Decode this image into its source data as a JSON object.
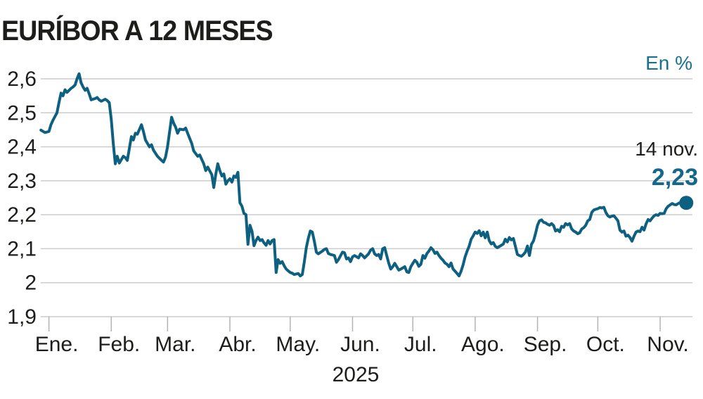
{
  "header": {
    "title": "EURÍBOR A 12 MESES",
    "unit_label": "En %"
  },
  "annotation": {
    "date": "14 nov.",
    "value": "2,23"
  },
  "colors": {
    "line": "#0e6080",
    "dot": "#0e6080",
    "value_text": "#15688c",
    "unit_text": "#17718f",
    "grid": "#cccccc",
    "tick": "#b3b3b3",
    "text": "#1d1d1b",
    "background": "#ffffff"
  },
  "chart_data": {
    "type": "line",
    "title": "EURÍBOR A 12 MESES",
    "unit": "En %",
    "xlabel": "2025",
    "ylabel": "",
    "ylim": [
      1.9,
      2.6
    ],
    "grid": "horizontal",
    "y_tick_labels": [
      "2,6",
      "2,5",
      "2,4",
      "2,3",
      "2,2",
      "2,1",
      "2",
      "1,9"
    ],
    "y_tick_values": [
      2.6,
      2.5,
      2.4,
      2.3,
      2.2,
      2.1,
      2.0,
      1.9
    ],
    "x_tick_labels": [
      "Ene.",
      "Feb.",
      "Mar.",
      "Abr.",
      "May.",
      "Jun.",
      "Jul.",
      "Ago.",
      "Sep.",
      "Oct.",
      "Nov."
    ],
    "month_start_days": [
      1,
      32,
      60,
      91,
      121,
      152,
      182,
      213,
      244,
      274,
      305
    ],
    "last_point": {
      "date": "14 nov.",
      "value": 2.23
    },
    "series": [
      {
        "name": "Euríbor 12 meses",
        "x_unit": "day_of_year_2025",
        "points": [
          [
            -3,
            2.449
          ],
          [
            -1,
            2.442
          ],
          [
            1,
            2.445
          ],
          [
            2,
            2.465
          ],
          [
            3,
            2.478
          ],
          [
            5,
            2.5
          ],
          [
            6,
            2.53
          ],
          [
            7,
            2.558
          ],
          [
            8,
            2.55
          ],
          [
            9,
            2.568
          ],
          [
            10,
            2.56
          ],
          [
            12,
            2.572
          ],
          [
            13,
            2.576
          ],
          [
            14,
            2.582
          ],
          [
            15,
            2.6
          ],
          [
            16,
            2.615
          ],
          [
            17,
            2.588
          ],
          [
            18,
            2.576
          ],
          [
            19,
            2.566
          ],
          [
            20,
            2.572
          ],
          [
            21,
            2.556
          ],
          [
            22,
            2.538
          ],
          [
            24,
            2.542
          ],
          [
            25,
            2.545
          ],
          [
            26,
            2.538
          ],
          [
            27,
            2.534
          ],
          [
            29,
            2.54
          ],
          [
            30,
            2.536
          ],
          [
            31,
            2.53
          ],
          [
            32,
            2.48
          ],
          [
            33,
            2.41
          ],
          [
            34,
            2.35
          ],
          [
            35,
            2.372
          ],
          [
            36,
            2.352
          ],
          [
            38,
            2.372
          ],
          [
            39,
            2.368
          ],
          [
            40,
            2.36
          ],
          [
            42,
            2.43
          ],
          [
            43,
            2.42
          ],
          [
            44,
            2.44
          ],
          [
            45,
            2.437
          ],
          [
            47,
            2.465
          ],
          [
            48,
            2.445
          ],
          [
            49,
            2.42
          ],
          [
            51,
            2.4
          ],
          [
            52,
            2.406
          ],
          [
            53,
            2.39
          ],
          [
            55,
            2.372
          ],
          [
            57,
            2.36
          ],
          [
            58,
            2.355
          ],
          [
            59,
            2.37
          ],
          [
            60,
            2.4
          ],
          [
            62,
            2.487
          ],
          [
            63,
            2.47
          ],
          [
            64,
            2.458
          ],
          [
            65,
            2.44
          ],
          [
            66,
            2.452
          ],
          [
            68,
            2.45
          ],
          [
            69,
            2.455
          ],
          [
            70,
            2.44
          ],
          [
            72,
            2.41
          ],
          [
            73,
            2.388
          ],
          [
            75,
            2.372
          ],
          [
            76,
            2.376
          ],
          [
            78,
            2.35
          ],
          [
            79,
            2.33
          ],
          [
            80,
            2.34
          ],
          [
            82,
            2.318
          ],
          [
            83,
            2.28
          ],
          [
            84,
            2.32
          ],
          [
            85,
            2.35
          ],
          [
            86,
            2.33
          ],
          [
            87,
            2.314
          ],
          [
            88,
            2.32
          ],
          [
            89,
            2.29
          ],
          [
            90,
            2.3
          ],
          [
            91,
            2.306
          ],
          [
            92,
            2.296
          ],
          [
            93,
            2.314
          ],
          [
            94,
            2.31
          ],
          [
            95,
            2.325
          ],
          [
            96,
            2.235
          ],
          [
            97,
            2.225
          ],
          [
            98,
            2.204
          ],
          [
            99,
            2.2
          ],
          [
            100,
            2.113
          ],
          [
            101,
            2.169
          ],
          [
            102,
            2.151
          ],
          [
            103,
            2.109
          ],
          [
            104,
            2.124
          ],
          [
            105,
            2.134
          ],
          [
            106,
            2.124
          ],
          [
            107,
            2.127
          ],
          [
            108,
            2.117
          ],
          [
            109,
            2.11
          ],
          [
            110,
            2.124
          ],
          [
            111,
            2.114
          ],
          [
            112,
            2.124
          ],
          [
            113,
            2.127
          ],
          [
            114,
            2.03
          ],
          [
            115,
            2.068
          ],
          [
            116,
            2.057
          ],
          [
            117,
            2.062
          ],
          [
            118,
            2.05
          ],
          [
            119,
            2.04
          ],
          [
            120,
            2.035
          ],
          [
            121,
            2.03
          ],
          [
            122,
            2.028
          ],
          [
            123,
            2.024
          ],
          [
            125,
            2.027
          ],
          [
            126,
            2.02
          ],
          [
            127,
            2.024
          ],
          [
            128,
            2.06
          ],
          [
            129,
            2.103
          ],
          [
            130,
            2.13
          ],
          [
            131,
            2.152
          ],
          [
            132,
            2.149
          ],
          [
            133,
            2.122
          ],
          [
            134,
            2.09
          ],
          [
            135,
            2.085
          ],
          [
            137,
            2.093
          ],
          [
            138,
            2.098
          ],
          [
            139,
            2.1
          ],
          [
            140,
            2.086
          ],
          [
            141,
            2.083
          ],
          [
            143,
            2.08
          ],
          [
            144,
            2.06
          ],
          [
            145,
            2.068
          ],
          [
            147,
            2.09
          ],
          [
            148,
            2.088
          ],
          [
            149,
            2.07
          ],
          [
            150,
            2.073
          ],
          [
            151,
            2.062
          ],
          [
            152,
            2.076
          ],
          [
            153,
            2.08
          ],
          [
            155,
            2.073
          ],
          [
            156,
            2.085
          ],
          [
            157,
            2.08
          ],
          [
            158,
            2.073
          ],
          [
            160,
            2.085
          ],
          [
            161,
            2.096
          ],
          [
            162,
            2.1
          ],
          [
            163,
            2.085
          ],
          [
            164,
            2.08
          ],
          [
            165,
            2.083
          ],
          [
            166,
            2.07
          ],
          [
            167,
            2.1
          ],
          [
            168,
            2.103
          ],
          [
            169,
            2.08
          ],
          [
            170,
            2.058
          ],
          [
            171,
            2.04
          ],
          [
            172,
            2.047
          ],
          [
            173,
            2.057
          ],
          [
            174,
            2.047
          ],
          [
            175,
            2.037
          ],
          [
            176,
            2.04
          ],
          [
            178,
            2.047
          ],
          [
            179,
            2.032
          ],
          [
            180,
            2.03
          ],
          [
            181,
            2.047
          ],
          [
            182,
            2.057
          ],
          [
            183,
            2.066
          ],
          [
            184,
            2.06
          ],
          [
            185,
            2.048
          ],
          [
            186,
            2.054
          ],
          [
            187,
            2.08
          ],
          [
            188,
            2.072
          ],
          [
            189,
            2.086
          ],
          [
            190,
            2.093
          ],
          [
            191,
            2.103
          ],
          [
            192,
            2.097
          ],
          [
            193,
            2.086
          ],
          [
            194,
            2.09
          ],
          [
            195,
            2.08
          ],
          [
            196,
            2.072
          ],
          [
            197,
            2.066
          ],
          [
            198,
            2.058
          ],
          [
            199,
            2.054
          ],
          [
            200,
            2.047
          ],
          [
            201,
            2.058
          ],
          [
            202,
            2.04
          ],
          [
            203,
            2.034
          ],
          [
            204,
            2.027
          ],
          [
            205,
            2.02
          ],
          [
            206,
            2.034
          ],
          [
            207,
            2.053
          ],
          [
            208,
            2.076
          ],
          [
            209,
            2.093
          ],
          [
            210,
            2.107
          ],
          [
            211,
            2.128
          ],
          [
            212,
            2.138
          ],
          [
            213,
            2.149
          ],
          [
            214,
            2.145
          ],
          [
            215,
            2.153
          ],
          [
            216,
            2.138
          ],
          [
            217,
            2.149
          ],
          [
            218,
            2.132
          ],
          [
            219,
            2.149
          ],
          [
            220,
            2.124
          ],
          [
            221,
            2.114
          ],
          [
            222,
            2.118
          ],
          [
            223,
            2.107
          ],
          [
            224,
            2.103
          ],
          [
            226,
            2.11
          ],
          [
            227,
            2.114
          ],
          [
            228,
            2.128
          ],
          [
            229,
            2.12
          ],
          [
            230,
            2.133
          ],
          [
            231,
            2.126
          ],
          [
            232,
            2.13
          ],
          [
            233,
            2.107
          ],
          [
            234,
            2.083
          ],
          [
            235,
            2.08
          ],
          [
            236,
            2.078
          ],
          [
            237,
            2.083
          ],
          [
            238,
            2.09
          ],
          [
            239,
            2.108
          ],
          [
            240,
            2.08
          ],
          [
            241,
            2.113
          ],
          [
            242,
            2.123
          ],
          [
            243,
            2.144
          ],
          [
            244,
            2.169
          ],
          [
            245,
            2.182
          ],
          [
            246,
            2.185
          ],
          [
            247,
            2.178
          ],
          [
            248,
            2.176
          ],
          [
            249,
            2.172
          ],
          [
            250,
            2.169
          ],
          [
            251,
            2.174
          ],
          [
            252,
            2.168
          ],
          [
            253,
            2.152
          ],
          [
            254,
            2.156
          ],
          [
            255,
            2.15
          ],
          [
            256,
            2.166
          ],
          [
            257,
            2.163
          ],
          [
            258,
            2.174
          ],
          [
            259,
            2.17
          ],
          [
            260,
            2.174
          ],
          [
            261,
            2.158
          ],
          [
            262,
            2.152
          ],
          [
            263,
            2.149
          ],
          [
            264,
            2.144
          ],
          [
            265,
            2.147
          ],
          [
            266,
            2.158
          ],
          [
            267,
            2.162
          ],
          [
            268,
            2.169
          ],
          [
            269,
            2.182
          ],
          [
            270,
            2.186
          ],
          [
            271,
            2.207
          ],
          [
            272,
            2.214
          ],
          [
            273,
            2.216
          ],
          [
            274,
            2.218
          ],
          [
            275,
            2.221
          ],
          [
            276,
            2.22
          ],
          [
            277,
            2.222
          ],
          [
            278,
            2.207
          ],
          [
            279,
            2.197
          ],
          [
            280,
            2.193
          ],
          [
            281,
            2.196
          ],
          [
            282,
            2.197
          ],
          [
            283,
            2.19
          ],
          [
            284,
            2.182
          ],
          [
            285,
            2.155
          ],
          [
            286,
            2.149
          ],
          [
            287,
            2.152
          ],
          [
            288,
            2.137
          ],
          [
            289,
            2.14
          ],
          [
            290,
            2.133
          ],
          [
            291,
            2.122
          ],
          [
            292,
            2.137
          ],
          [
            293,
            2.149
          ],
          [
            294,
            2.152
          ],
          [
            295,
            2.15
          ],
          [
            296,
            2.163
          ],
          [
            297,
            2.155
          ],
          [
            298,
            2.173
          ],
          [
            299,
            2.186
          ],
          [
            300,
            2.182
          ],
          [
            301,
            2.19
          ],
          [
            302,
            2.197
          ],
          [
            303,
            2.2
          ],
          [
            304,
            2.198
          ],
          [
            305,
            2.204
          ],
          [
            306,
            2.203
          ],
          [
            307,
            2.204
          ],
          [
            308,
            2.218
          ],
          [
            309,
            2.225
          ],
          [
            310,
            2.229
          ],
          [
            311,
            2.233
          ],
          [
            312,
            2.23
          ],
          [
            313,
            2.229
          ],
          [
            314,
            2.233
          ],
          [
            315,
            2.236
          ],
          [
            316,
            2.234
          ],
          [
            317,
            2.232
          ],
          [
            318,
            2.235
          ]
        ]
      }
    ]
  }
}
